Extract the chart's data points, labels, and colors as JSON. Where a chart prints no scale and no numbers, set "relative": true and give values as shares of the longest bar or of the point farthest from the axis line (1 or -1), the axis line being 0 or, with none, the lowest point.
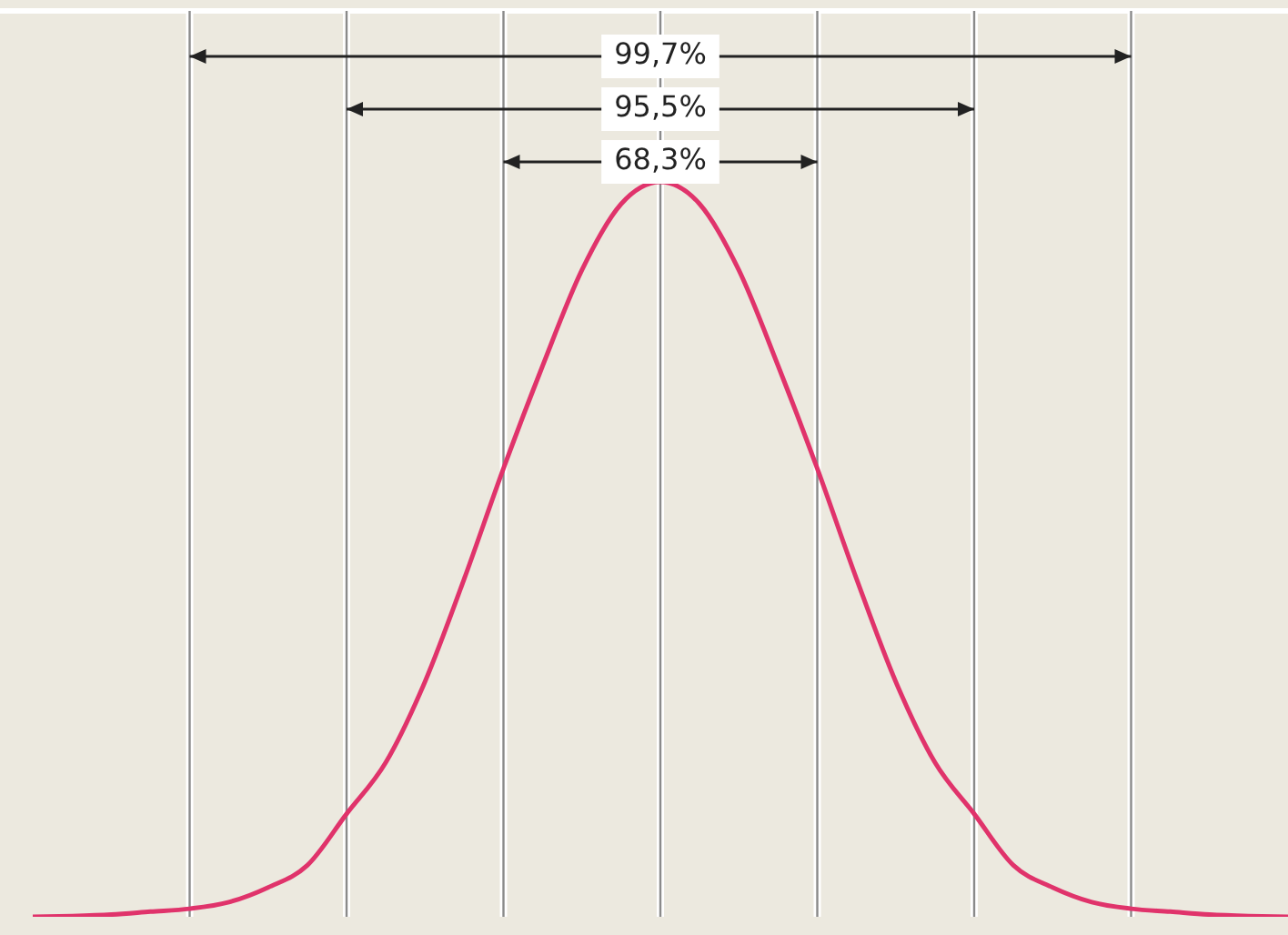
{
  "chart_data": {
    "type": "line",
    "relative": true,
    "categories": [
      null,
      null,
      null,
      null,
      null,
      null,
      null,
      null,
      null,
      null,
      null,
      null,
      null,
      null,
      null,
      null,
      null,
      null,
      null,
      null,
      null,
      null,
      null,
      null,
      null,
      null,
      null,
      null,
      null,
      null,
      null,
      null,
      null
    ],
    "series": [
      {
        "color": "#e0336b",
        "values": [
          0,
          0.001,
          0.003,
          0.007,
          0.011,
          0.02,
          0.04,
          0.07,
          0.14,
          0.21,
          0.32,
          0.46,
          0.61,
          0.75,
          0.88,
          0.97,
          1,
          0.97,
          0.88,
          0.75,
          0.61,
          0.46,
          0.32,
          0.21,
          0.14,
          0.07,
          0.04,
          0.02,
          0.011,
          0.007,
          0.003,
          0.001,
          0
        ]
      }
    ],
    "annotations": [
      "99,7%",
      "95,5%",
      "68,3%"
    ],
    "grid": "x",
    "legend": false,
    "marker": "none",
    "line_style": "solid"
  }
}
